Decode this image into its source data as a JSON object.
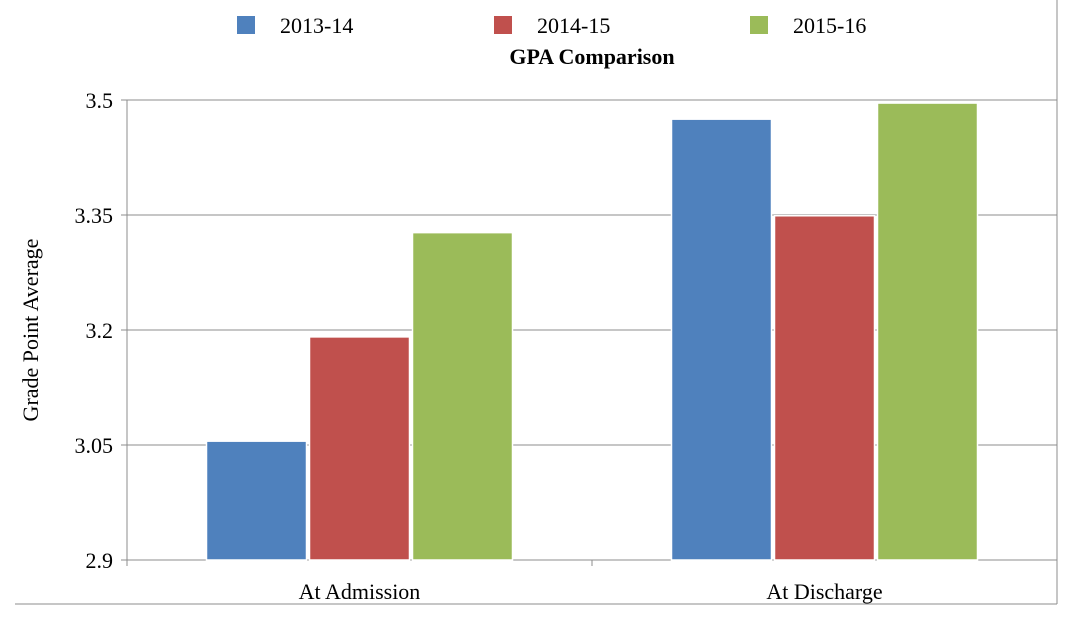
{
  "chart_data": {
    "type": "bar",
    "title": "GPA Comparison",
    "xlabel": "",
    "ylabel": "Grade Point Average",
    "ylim": [
      2.9,
      3.5
    ],
    "yticks": [
      2.9,
      3.05,
      3.2,
      3.35,
      3.5
    ],
    "categories": [
      "At Admission",
      "At Discharge"
    ],
    "series": [
      {
        "name": "2013-14",
        "color": "#4F81BD",
        "values": [
          3.055,
          3.475
        ]
      },
      {
        "name": "2014-15",
        "color": "#C0504D",
        "values": [
          3.191,
          3.349
        ]
      },
      {
        "name": "2015-16",
        "color": "#9BBB59",
        "values": [
          3.327,
          3.496
        ]
      }
    ],
    "legend": "top",
    "grid": true
  }
}
